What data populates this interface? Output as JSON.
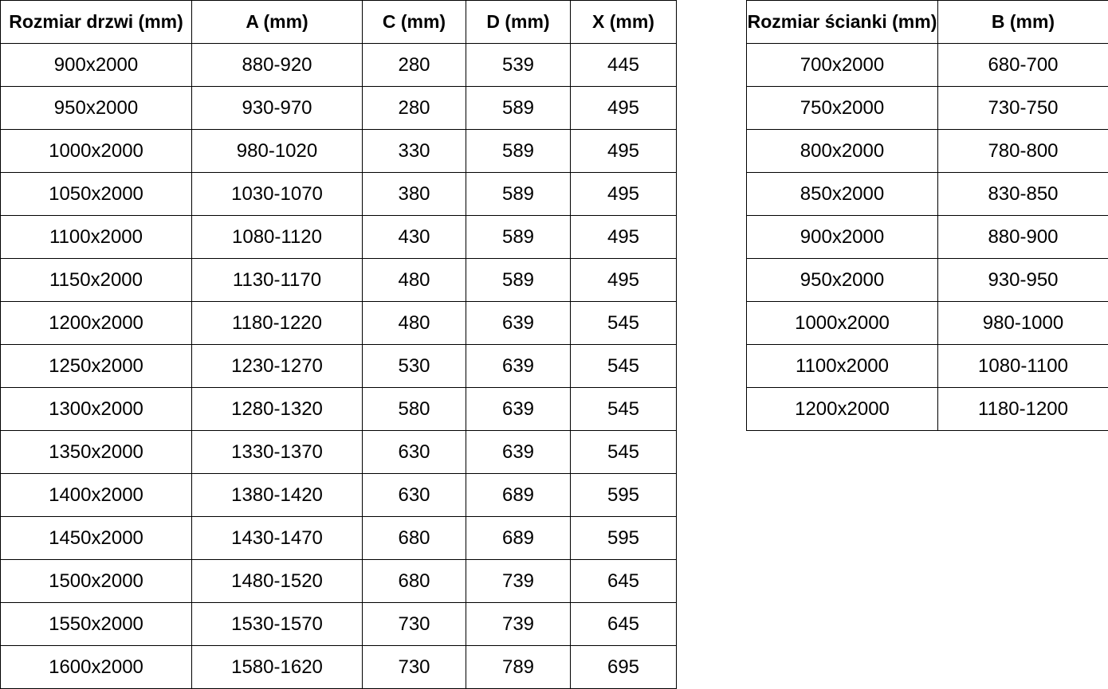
{
  "colors": {
    "background": "#ffffff",
    "text": "#000000",
    "border": "#000000"
  },
  "door_table": {
    "columns": [
      "Rozmiar drzwi (mm)",
      "A (mm)",
      "C (mm)",
      "D (mm)",
      "X (mm)"
    ],
    "rows": [
      [
        "900x2000",
        "880-920",
        "280",
        "539",
        "445"
      ],
      [
        "950x2000",
        "930-970",
        "280",
        "589",
        "495"
      ],
      [
        "1000x2000",
        "980-1020",
        "330",
        "589",
        "495"
      ],
      [
        "1050x2000",
        "1030-1070",
        "380",
        "589",
        "495"
      ],
      [
        "1100x2000",
        "1080-1120",
        "430",
        "589",
        "495"
      ],
      [
        "1150x2000",
        "1130-1170",
        "480",
        "589",
        "495"
      ],
      [
        "1200x2000",
        "1180-1220",
        "480",
        "639",
        "545"
      ],
      [
        "1250x2000",
        "1230-1270",
        "530",
        "639",
        "545"
      ],
      [
        "1300x2000",
        "1280-1320",
        "580",
        "639",
        "545"
      ],
      [
        "1350x2000",
        "1330-1370",
        "630",
        "639",
        "545"
      ],
      [
        "1400x2000",
        "1380-1420",
        "630",
        "689",
        "595"
      ],
      [
        "1450x2000",
        "1430-1470",
        "680",
        "689",
        "595"
      ],
      [
        "1500x2000",
        "1480-1520",
        "680",
        "739",
        "645"
      ],
      [
        "1550x2000",
        "1530-1570",
        "730",
        "739",
        "645"
      ],
      [
        "1600x2000",
        "1580-1620",
        "730",
        "789",
        "695"
      ]
    ]
  },
  "wall_table": {
    "columns": [
      "Rozmiar ścianki (mm)",
      "B (mm)"
    ],
    "rows": [
      [
        "700x2000",
        "680-700"
      ],
      [
        "750x2000",
        "730-750"
      ],
      [
        "800x2000",
        "780-800"
      ],
      [
        "850x2000",
        "830-850"
      ],
      [
        "900x2000",
        "880-900"
      ],
      [
        "950x2000",
        "930-950"
      ],
      [
        "1000x2000",
        "980-1000"
      ],
      [
        "1100x2000",
        "1080-1100"
      ],
      [
        "1200x2000",
        "1180-1200"
      ]
    ]
  }
}
